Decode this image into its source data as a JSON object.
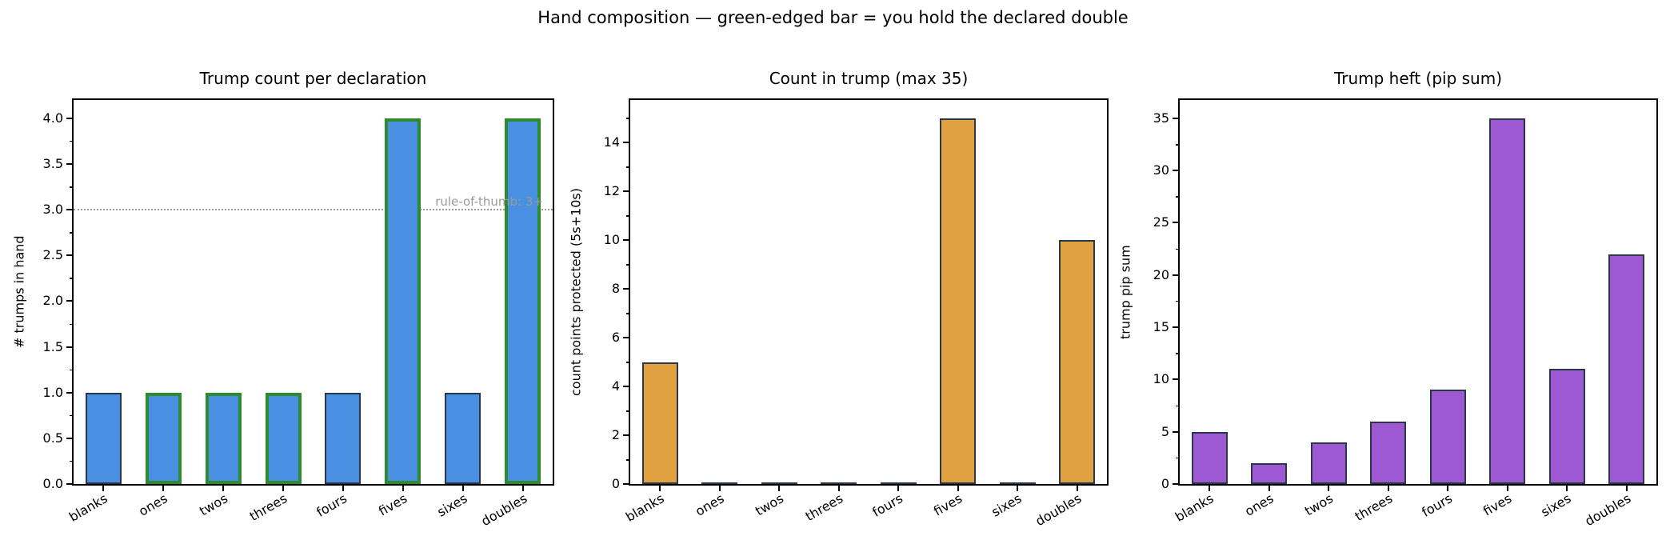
{
  "figure": {
    "suptitle": "Hand composition — green-edged bar = you hold the declared double"
  },
  "colors": {
    "blue_bar": "#4a90e2",
    "green_edge": "#2e8b2e",
    "orange_bar": "#e0a240",
    "purple_bar": "#9d59d2",
    "dark_edge": "#2b3648",
    "guide_gray": "#9b9b9b"
  },
  "chart_data": [
    {
      "type": "bar",
      "title": "Trump count per declaration",
      "xlabel": "",
      "ylabel": "# trumps in hand",
      "categories": [
        "blanks",
        "ones",
        "twos",
        "threes",
        "fours",
        "fives",
        "sixes",
        "doubles"
      ],
      "values": [
        1,
        1,
        1,
        1,
        1,
        4,
        1,
        4
      ],
      "green_edged_categories": [
        "ones",
        "twos",
        "threes",
        "fives",
        "doubles"
      ],
      "green_edge_indices": [
        1,
        2,
        3,
        5,
        7
      ],
      "ylim": [
        0,
        4.2
      ],
      "yticks": [
        0.0,
        0.5,
        1.0,
        1.5,
        2.0,
        2.5,
        3.0,
        3.5,
        4.0
      ],
      "ytick_labels": [
        "0.0",
        "0.5",
        "1.0",
        "1.5",
        "2.0",
        "2.5",
        "3.0",
        "3.5",
        "4.0"
      ],
      "minor_step": 0.25,
      "grid": false,
      "legend": null,
      "guide_line": {
        "y": 3,
        "label": "rule-of-thumb: 3+",
        "style": "dotted"
      },
      "bar_color_key": "blue_bar"
    },
    {
      "type": "bar",
      "title": "Count in trump (max 35)",
      "xlabel": "",
      "ylabel": "count points protected (5s+10s)",
      "categories": [
        "blanks",
        "ones",
        "twos",
        "threes",
        "fours",
        "fives",
        "sixes",
        "doubles"
      ],
      "values": [
        5,
        0,
        0,
        0,
        0,
        15,
        0,
        10
      ],
      "ylim": [
        0,
        15.75
      ],
      "yticks": [
        0,
        2,
        4,
        6,
        8,
        10,
        12,
        14
      ],
      "ytick_labels": [
        "0",
        "2",
        "4",
        "6",
        "8",
        "10",
        "12",
        "14"
      ],
      "minor_step": 1,
      "grid": false,
      "legend": null,
      "guide_line": null,
      "bar_color_key": "orange_bar"
    },
    {
      "type": "bar",
      "title": "Trump heft (pip sum)",
      "xlabel": "",
      "ylabel": "trump pip sum",
      "categories": [
        "blanks",
        "ones",
        "twos",
        "threes",
        "fours",
        "fives",
        "sixes",
        "doubles"
      ],
      "values": [
        5,
        2,
        4,
        6,
        9,
        35,
        11,
        22
      ],
      "ylim": [
        0,
        36.75
      ],
      "yticks": [
        0,
        5,
        10,
        15,
        20,
        25,
        30,
        35
      ],
      "ytick_labels": [
        "0",
        "5",
        "10",
        "15",
        "20",
        "25",
        "30",
        "35"
      ],
      "minor_step": 2.5,
      "grid": false,
      "legend": null,
      "guide_line": null,
      "bar_color_key": "purple_bar"
    }
  ]
}
